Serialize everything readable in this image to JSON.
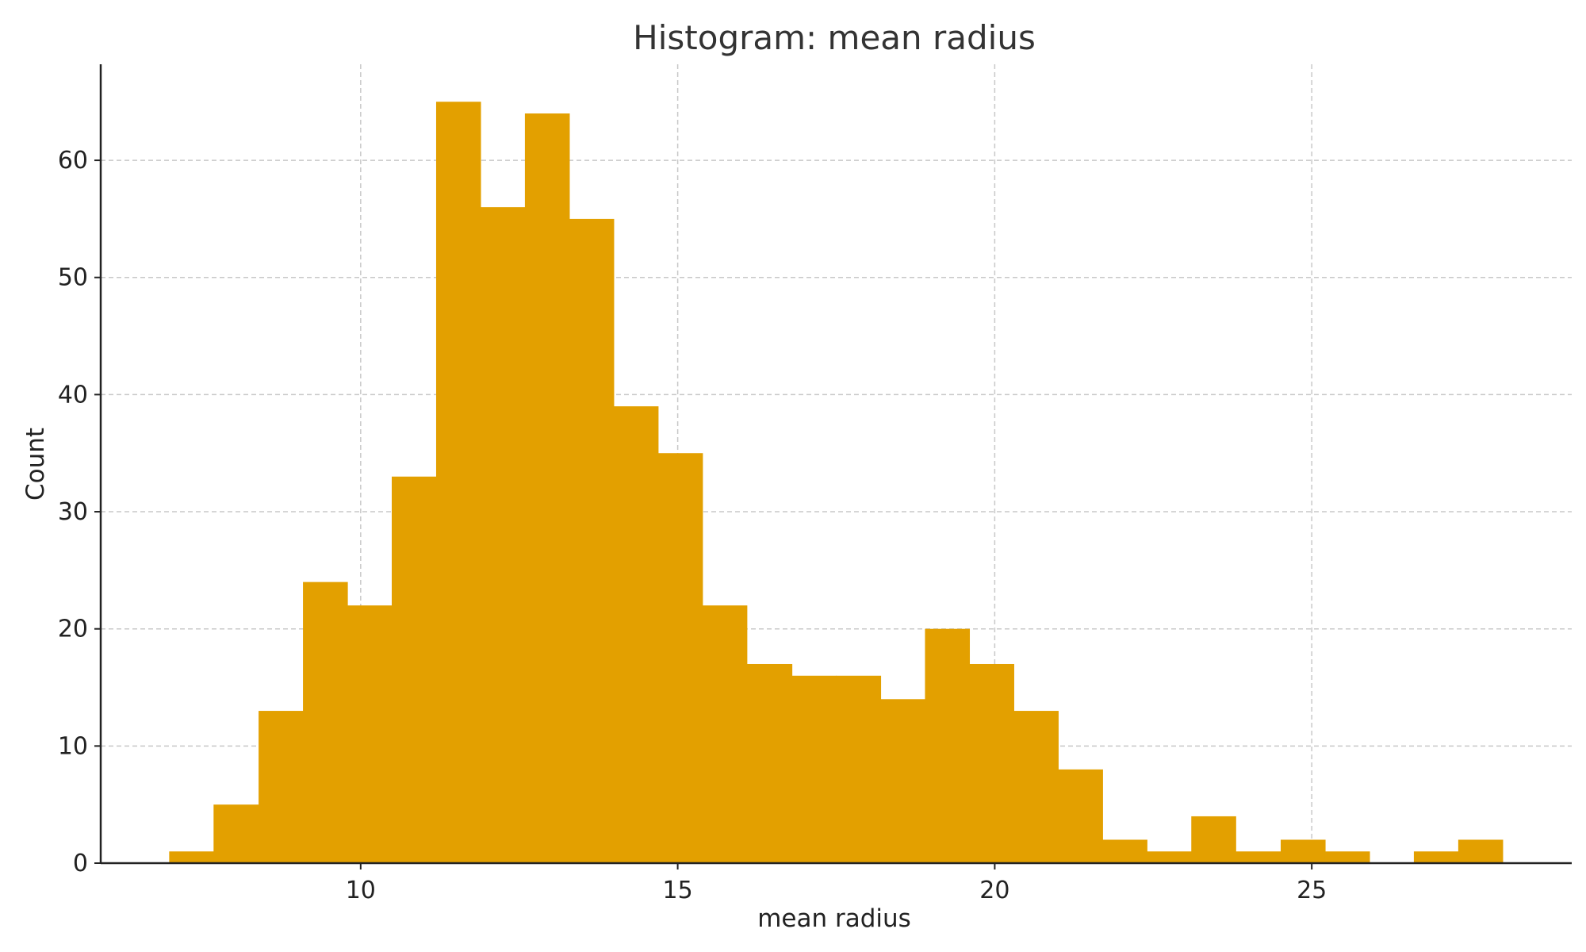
{
  "chart_data": {
    "type": "bar",
    "title": "Histogram: mean radius",
    "xlabel": "mean radius",
    "ylabel": "Count",
    "grid": true,
    "xlim": [
      5.9,
      29.1
    ],
    "ylim": [
      0,
      68.2
    ],
    "xticks": [
      10,
      15,
      20,
      25
    ],
    "yticks": [
      0,
      10,
      20,
      30,
      40,
      50,
      60
    ],
    "bar_color": "#e3a000",
    "bin_edges": [
      6.98,
      7.68,
      8.39,
      9.09,
      9.79,
      10.49,
      11.19,
      11.89,
      12.59,
      13.29,
      13.99,
      14.69,
      15.39,
      16.09,
      16.8,
      17.5,
      18.2,
      18.9,
      19.6,
      20.3,
      21.0,
      21.7,
      22.4,
      23.1,
      23.8,
      24.51,
      25.21,
      25.91,
      26.61,
      27.31,
      28.01
    ],
    "counts": [
      1,
      5,
      13,
      24,
      22,
      33,
      65,
      56,
      64,
      55,
      39,
      35,
      22,
      17,
      16,
      16,
      14,
      20,
      17,
      13,
      8,
      2,
      1,
      4,
      1,
      2,
      1,
      0,
      1,
      2
    ]
  }
}
